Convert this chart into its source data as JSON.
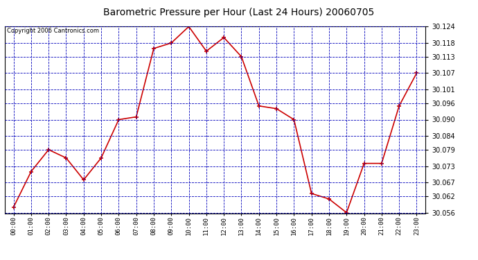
{
  "title": "Barometric Pressure per Hour (Last 24 Hours) 20060705",
  "copyright": "Copyright 2006 Cantronics.com",
  "hours": [
    "00:00",
    "01:00",
    "02:00",
    "03:00",
    "04:00",
    "05:00",
    "06:00",
    "07:00",
    "08:00",
    "09:00",
    "10:00",
    "11:00",
    "12:00",
    "13:00",
    "14:00",
    "15:00",
    "16:00",
    "17:00",
    "18:00",
    "19:00",
    "20:00",
    "21:00",
    "22:00",
    "23:00"
  ],
  "values": [
    30.058,
    30.071,
    30.079,
    30.076,
    30.068,
    30.076,
    30.09,
    30.091,
    30.116,
    30.118,
    30.124,
    30.115,
    30.12,
    30.113,
    30.095,
    30.094,
    30.09,
    30.063,
    30.061,
    30.056,
    30.074,
    30.074,
    30.095,
    30.107
  ],
  "line_color": "#cc0000",
  "marker": "+",
  "marker_size": 5,
  "bg_color": "#ffffff",
  "plot_bg": "#ffffff",
  "grid_color": "#0000bb",
  "y_min": 30.056,
  "y_max": 30.124,
  "yticks": [
    30.056,
    30.062,
    30.067,
    30.073,
    30.079,
    30.084,
    30.09,
    30.096,
    30.101,
    30.107,
    30.113,
    30.118,
    30.124
  ]
}
